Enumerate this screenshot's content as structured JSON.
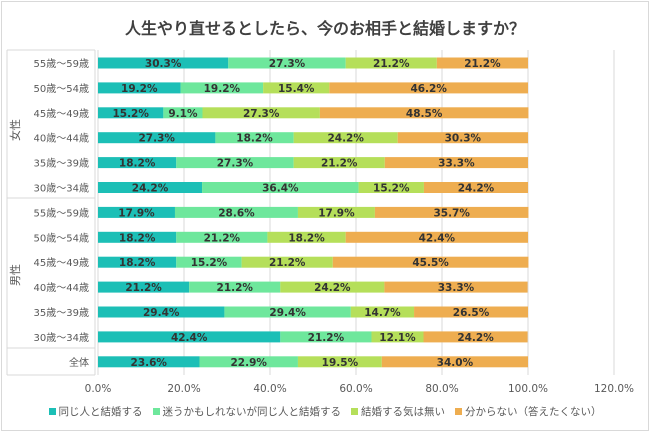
{
  "chart_data": {
    "type": "bar",
    "orientation": "horizontal",
    "stacked": true,
    "title": "人生やり直せるとしたら、今のお相手と結婚しますか？",
    "groups": [
      {
        "name": "女性",
        "categories": [
          "55歳～59歳",
          "50歳～54歳",
          "45歳～49歳",
          "40歳～44歳",
          "35歳～39歳",
          "30歳～34歳"
        ]
      },
      {
        "name": "男性",
        "categories": [
          "55歳～59歳",
          "50歳～54歳",
          "45歳～49歳",
          "40歳～44歳",
          "35歳～39歳",
          "30歳～34歳"
        ]
      },
      {
        "name": "",
        "categories": [
          "全体"
        ]
      }
    ],
    "categories": [
      "55歳～59歳",
      "50歳～54歳",
      "45歳～49歳",
      "40歳～44歳",
      "35歳～39歳",
      "30歳～34歳",
      "55歳～59歳",
      "50歳～54歳",
      "45歳～49歳",
      "40歳～44歳",
      "35歳～39歳",
      "30歳～34歳",
      "全体"
    ],
    "series": [
      {
        "name": "同じ人と結婚する",
        "color": "#1cbfb6",
        "values": [
          30.3,
          19.2,
          15.2,
          27.3,
          18.2,
          24.2,
          17.9,
          18.2,
          18.2,
          21.2,
          29.4,
          42.4,
          23.6
        ]
      },
      {
        "name": "迷うかもしれないが同じ人と結婚する",
        "color": "#6ee79c",
        "values": [
          27.3,
          19.2,
          9.1,
          18.2,
          27.3,
          36.4,
          28.6,
          21.2,
          15.2,
          21.2,
          29.4,
          21.2,
          22.9
        ]
      },
      {
        "name": "結婚する気は無い",
        "color": "#b5df5a",
        "values": [
          21.2,
          15.4,
          27.3,
          24.2,
          21.2,
          15.2,
          17.9,
          18.2,
          21.2,
          24.2,
          14.7,
          12.1,
          19.5
        ]
      },
      {
        "name": "分からない（答えたくない）",
        "color": "#eead50",
        "values": [
          21.2,
          46.2,
          48.5,
          30.3,
          33.3,
          24.2,
          35.7,
          42.4,
          45.5,
          33.3,
          26.5,
          24.2,
          34.0
        ]
      }
    ],
    "xlim": [
      0,
      120
    ],
    "xticks": [
      "0.0%",
      "20.0%",
      "40.0%",
      "60.0%",
      "80.0%",
      "100.0%",
      "120.0%"
    ],
    "grid": true,
    "legend": "bottom"
  }
}
